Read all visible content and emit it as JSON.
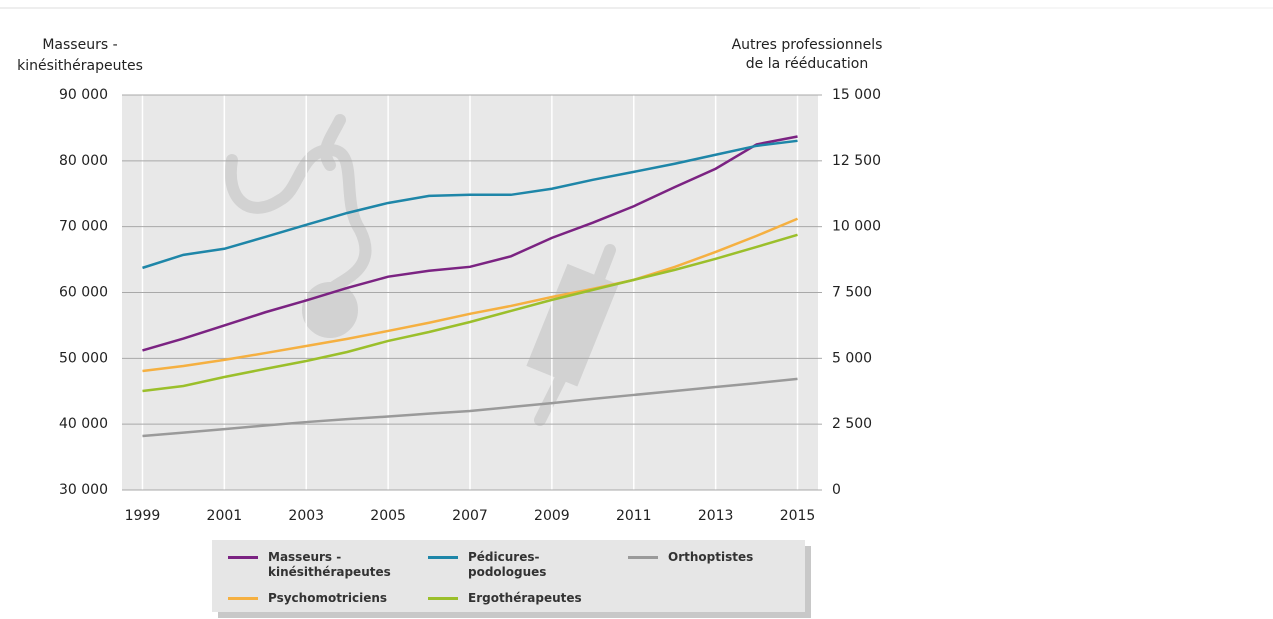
{
  "chart_data": {
    "type": "line",
    "ylabel": [
      "Masseurs -",
      "kinésithérapeutes"
    ],
    "y2label": [
      "Autres professionnels",
      "de la rééducation"
    ],
    "x": [
      1999,
      2000,
      2001,
      2002,
      2003,
      2004,
      2005,
      2006,
      2007,
      2008,
      2009,
      2010,
      2011,
      2012,
      2013,
      2014,
      2015
    ],
    "xlim": [
      1998.5,
      2015.5
    ],
    "xticks": [
      1999,
      2001,
      2003,
      2005,
      2007,
      2009,
      2011,
      2013,
      2015
    ],
    "ylim": [
      30000,
      90000
    ],
    "yticks": [
      {
        "value": 30000,
        "label": "30 000"
      },
      {
        "value": 40000,
        "label": "40 000"
      },
      {
        "value": 50000,
        "label": "50 000"
      },
      {
        "value": 60000,
        "label": "60 000"
      },
      {
        "value": 70000,
        "label": "70 000"
      },
      {
        "value": 80000,
        "label": "80 000"
      },
      {
        "value": 90000,
        "label": "90 000"
      }
    ],
    "y2lim": [
      0,
      15000
    ],
    "y2ticks": [
      0,
      {
        "value": 2500,
        "label": "2 500"
      },
      {
        "value": 5000,
        "label": "5 000"
      },
      {
        "value": 7500,
        "label": "7 500"
      },
      {
        "value": 10000,
        "label": "10 000"
      },
      {
        "value": 12500,
        "label": "12 500"
      },
      {
        "value": 15000,
        "label": "15 000"
      }
    ],
    "grid": true,
    "series": [
      {
        "name": "Masseurs - kinésithérapeutes",
        "color": "#7b2382",
        "axis": "y",
        "values": [
          51200,
          53000,
          55000,
          57000,
          58800,
          60700,
          62400,
          63300,
          63900,
          65500,
          68300,
          70600,
          73100,
          76000,
          78800,
          82500,
          83700
        ]
      },
      {
        "name": "Pédicures-podologues",
        "color": "#1e86a8",
        "axis": "y2",
        "values": [
          8435,
          8930,
          9160,
          9610,
          10070,
          10520,
          10900,
          11170,
          11210,
          11210,
          11440,
          11780,
          12080,
          12390,
          12730,
          13070,
          13260
        ]
      },
      {
        "name": "Orthoptistes",
        "color": "#9a9a9a",
        "axis": "y2",
        "values": [
          2050,
          2180,
          2310,
          2450,
          2580,
          2690,
          2790,
          2900,
          3000,
          3150,
          3300,
          3460,
          3610,
          3760,
          3910,
          4060,
          4220
        ]
      },
      {
        "name": "Psychomotriciens",
        "color": "#f5b041",
        "axis": "y2",
        "values": [
          4520,
          4710,
          4940,
          5200,
          5470,
          5740,
          6040,
          6350,
          6690,
          6990,
          7330,
          7640,
          7980,
          8470,
          9040,
          9650,
          10300
        ]
      },
      {
        "name": "Ergothérapeutes",
        "color": "#9bbf2b",
        "axis": "y2",
        "values": [
          3760,
          3950,
          4290,
          4600,
          4900,
          5240,
          5660,
          6000,
          6380,
          6800,
          7220,
          7600,
          7980,
          8360,
          8780,
          9230,
          9690
        ]
      }
    ]
  }
}
